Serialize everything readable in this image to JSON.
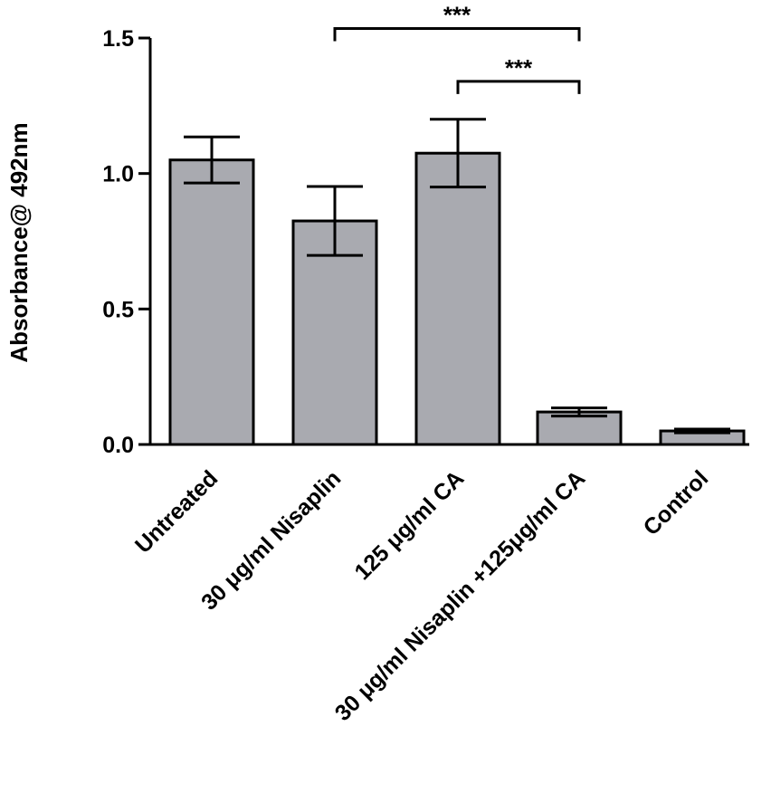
{
  "chart_data": {
    "type": "bar",
    "title": "",
    "xlabel": "",
    "ylabel": "Absorbance@ 492nm",
    "ylim": [
      0,
      1.5
    ],
    "yticks": [
      "0.0",
      "0.5",
      "1.0",
      "1.5"
    ],
    "ytick_values": [
      0,
      0.5,
      1.0,
      1.5
    ],
    "categories": [
      "Untreated",
      "30 μg/ml Nisaplin",
      "125 μg/ml CA",
      "30 μg/ml Nisaplin +125μg/ml CA",
      "Control"
    ],
    "values": [
      1.05,
      0.825,
      1.075,
      0.12,
      0.05
    ],
    "error": [
      0.085,
      0.127,
      0.125,
      0.015,
      0.007
    ],
    "grid": false,
    "bar_color": "#a9aab0",
    "significance": [
      {
        "from": 1,
        "to": 3,
        "y": 1.535,
        "label": "***"
      },
      {
        "from": 2,
        "to": 3,
        "y": 1.34,
        "label": "***"
      }
    ]
  }
}
